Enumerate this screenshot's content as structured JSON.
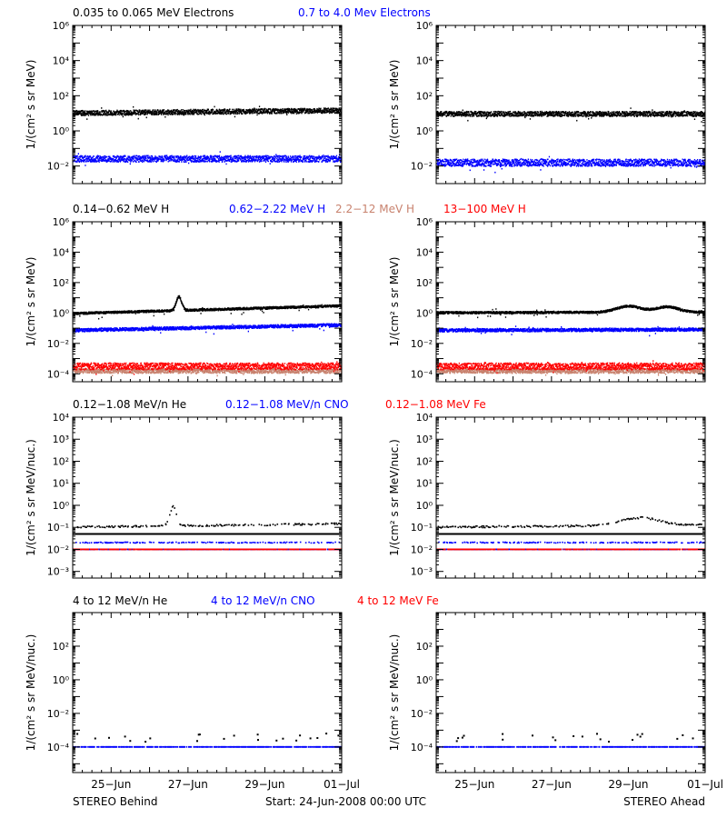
{
  "colors": {
    "black": "#000000",
    "blue": "#0000ff",
    "salmon": "#c8826e",
    "red": "#ff0000"
  },
  "footer": {
    "left": "STEREO Behind",
    "center": "Start: 24-Jun-2008 00:00 UTC",
    "right": "STEREO Ahead"
  },
  "time_axis": {
    "start": "24-Jun-2008 00:00",
    "end": "01-Jul-2008 00:00",
    "tick_labels": [
      "25−Jun",
      "27−Jun",
      "29−Jun",
      "01−Jul"
    ],
    "tick_days": [
      1,
      3,
      5,
      7
    ],
    "minor_ticks_per_day": 4
  },
  "rows": [
    {
      "titles": [
        {
          "text": "0.035 to 0.065 MeV Electrons",
          "color": "black"
        },
        {
          "text": "0.7 to 4.0 Mev Electrons",
          "color": "blue"
        }
      ]
    },
    {
      "titles": [
        {
          "text": "0.14−0.62 MeV H",
          "color": "black"
        },
        {
          "text": "0.62−2.22 MeV H",
          "color": "blue"
        },
        {
          "text": "2.2−12 MeV H",
          "color": "salmon"
        },
        {
          "text": "13−100 MeV H",
          "color": "red"
        }
      ]
    },
    {
      "titles": [
        {
          "text": "0.12−1.08 MeV/n He",
          "color": "black"
        },
        {
          "text": "0.12−1.08 MeV/n CNO",
          "color": "blue"
        },
        {
          "text": "0.12−1.08 MeV Fe",
          "color": "red"
        }
      ]
    },
    {
      "titles": [
        {
          "text": "4 to 12 MeV/n He",
          "color": "black"
        },
        {
          "text": "4 to 12 MeV/n CNO",
          "color": "blue"
        },
        {
          "text": "4 to 12 MeV Fe",
          "color": "red"
        }
      ]
    }
  ],
  "chart_data": [
    {
      "id": "behind-electrons",
      "type": "scatter",
      "y_scale": "log",
      "ylabel": "1/(cm² s sr MeV)",
      "ylim": [
        0.001,
        1000000
      ],
      "y_ticks": [
        {
          "exp": 6,
          "label": "10⁶"
        },
        {
          "exp": 4,
          "label": "10⁴"
        },
        {
          "exp": 2,
          "label": "10²"
        },
        {
          "exp": 0,
          "label": "10⁰"
        },
        {
          "exp": -2,
          "label": "10⁻²"
        }
      ],
      "series": [
        {
          "color": "black",
          "base": 10,
          "trend": 0.15,
          "spread": 0.14,
          "style": "band"
        },
        {
          "color": "blue",
          "base": 0.025,
          "trend": 0,
          "spread": 0.18,
          "style": "band"
        }
      ]
    },
    {
      "id": "ahead-electrons",
      "type": "scatter",
      "y_scale": "log",
      "ylabel": "1/(cm² s sr MeV)",
      "ylim": [
        0.001,
        1000000
      ],
      "y_ticks": [
        {
          "exp": 6,
          "label": "10⁶"
        },
        {
          "exp": 4,
          "label": "10⁴"
        },
        {
          "exp": 2,
          "label": "10²"
        },
        {
          "exp": 0,
          "label": "10⁰"
        },
        {
          "exp": -2,
          "label": "10⁻²"
        }
      ],
      "series": [
        {
          "color": "black",
          "base": 9,
          "trend": 0,
          "spread": 0.14,
          "style": "band"
        },
        {
          "color": "blue",
          "base": 0.015,
          "trend": 0,
          "spread": 0.2,
          "style": "band"
        }
      ]
    },
    {
      "id": "behind-protons",
      "type": "scatter",
      "y_scale": "log",
      "ylabel": "1/(cm² s sr MeV)",
      "ylim": [
        3e-05,
        1000000
      ],
      "y_ticks": [
        {
          "exp": 6,
          "label": "10⁶"
        },
        {
          "exp": 4,
          "label": "10⁴"
        },
        {
          "exp": 2,
          "label": "10²"
        },
        {
          "exp": 0,
          "label": "10⁰"
        },
        {
          "exp": -2,
          "label": "10⁻²"
        },
        {
          "exp": -4,
          "label": "10⁻⁴"
        }
      ],
      "series": [
        {
          "color": "black",
          "base": 0.9,
          "trend": 0.5,
          "spread": 0.07,
          "style": "band",
          "bumps": [
            {
              "day": 2.75,
              "height": 0.9,
              "width": 0.1
            }
          ]
        },
        {
          "color": "blue",
          "base": 0.07,
          "trend": 0.35,
          "spread": 0.1,
          "style": "band"
        },
        {
          "color": "salmon",
          "base": 0.00015,
          "trend": 0,
          "spread": 0.15,
          "style": "band"
        },
        {
          "color": "red",
          "base": 0.0003,
          "trend": 0,
          "spread": 0.22,
          "style": "band"
        }
      ]
    },
    {
      "id": "ahead-protons",
      "type": "scatter",
      "y_scale": "log",
      "ylabel": "1/(cm² s sr MeV)",
      "ylim": [
        3e-05,
        1000000
      ],
      "y_ticks": [
        {
          "exp": 6,
          "label": "10⁶"
        },
        {
          "exp": 4,
          "label": "10⁴"
        },
        {
          "exp": 2,
          "label": "10²"
        },
        {
          "exp": 0,
          "label": "10⁰"
        },
        {
          "exp": -2,
          "label": "10⁻²"
        },
        {
          "exp": -4,
          "label": "10⁻⁴"
        }
      ],
      "series": [
        {
          "color": "black",
          "base": 1.0,
          "trend": 0.05,
          "spread": 0.07,
          "style": "band",
          "bumps": [
            {
              "day": 5.0,
              "height": 0.4,
              "width": 0.45
            },
            {
              "day": 6.0,
              "height": 0.35,
              "width": 0.4
            }
          ]
        },
        {
          "color": "blue",
          "base": 0.07,
          "trend": 0.05,
          "spread": 0.1,
          "style": "band"
        },
        {
          "color": "salmon",
          "base": 0.00015,
          "trend": 0,
          "spread": 0.15,
          "style": "band"
        },
        {
          "color": "red",
          "base": 0.0003,
          "trend": 0,
          "spread": 0.22,
          "style": "band"
        }
      ]
    },
    {
      "id": "behind-ions-low",
      "type": "scatter",
      "y_scale": "log",
      "ylabel": "1/(cm² s sr MeV/nuc.)",
      "ylim": [
        0.0005,
        10000
      ],
      "y_ticks": [
        {
          "exp": 4,
          "label": "10⁴"
        },
        {
          "exp": 3,
          "label": "10³"
        },
        {
          "exp": 2,
          "label": "10²"
        },
        {
          "exp": 1,
          "label": "10¹"
        },
        {
          "exp": 0,
          "label": "10⁰"
        },
        {
          "exp": -1,
          "label": "10⁻¹"
        },
        {
          "exp": -2,
          "label": "10⁻²"
        },
        {
          "exp": -3,
          "label": "10⁻³"
        }
      ],
      "lines": [
        {
          "color": "black",
          "value": 0.05,
          "width": 2
        }
      ],
      "series": [
        {
          "color": "black",
          "base": 0.1,
          "trend": 0.15,
          "spread": 0.04,
          "style": "sparse",
          "bumps": [
            {
              "day": 2.6,
              "height": 0.9,
              "width": 0.12
            }
          ]
        },
        {
          "color": "blue",
          "base": 0.02,
          "trend": 0,
          "spread": 0.02,
          "style": "sparse"
        },
        {
          "color": "blue",
          "base": 0.01,
          "trend": 0,
          "spread": 0.0,
          "style": "dashed"
        },
        {
          "color": "red",
          "base": 0.01,
          "trend": 0,
          "spread": 0.0,
          "style": "dashed"
        }
      ]
    },
    {
      "id": "ahead-ions-low",
      "type": "scatter",
      "y_scale": "log",
      "ylabel": "1/(cm² s sr MeV/nuc.)",
      "ylim": [
        0.0005,
        10000
      ],
      "y_ticks": [
        {
          "exp": 4,
          "label": "10⁴"
        },
        {
          "exp": 3,
          "label": "10³"
        },
        {
          "exp": 2,
          "label": "10²"
        },
        {
          "exp": 1,
          "label": "10¹"
        },
        {
          "exp": 0,
          "label": "10⁰"
        },
        {
          "exp": -1,
          "label": "10⁻¹"
        },
        {
          "exp": -2,
          "label": "10⁻²"
        },
        {
          "exp": -3,
          "label": "10⁻³"
        }
      ],
      "lines": [
        {
          "color": "black",
          "value": 0.05,
          "width": 2
        }
      ],
      "series": [
        {
          "color": "black",
          "base": 0.1,
          "trend": 0.1,
          "spread": 0.04,
          "style": "sparse",
          "bumps": [
            {
              "day": 5.3,
              "height": 0.35,
              "width": 0.7
            }
          ]
        },
        {
          "color": "blue",
          "base": 0.02,
          "trend": 0,
          "spread": 0.02,
          "style": "sparse"
        },
        {
          "color": "blue",
          "base": 0.01,
          "trend": 0,
          "spread": 0.0,
          "style": "dashed"
        },
        {
          "color": "red",
          "base": 0.01,
          "trend": 0,
          "spread": 0.0,
          "style": "dashed"
        }
      ]
    },
    {
      "id": "behind-ions-high",
      "type": "scatter",
      "y_scale": "log",
      "ylabel": "1/(cm² s sr MeV/nuc.)",
      "ylim": [
        3e-06,
        10000
      ],
      "y_ticks": [
        {
          "exp": 2,
          "label": "10²"
        },
        {
          "exp": 0,
          "label": "10⁰"
        },
        {
          "exp": -2,
          "label": "10⁻²"
        },
        {
          "exp": -4,
          "label": "10⁻⁴"
        }
      ],
      "series": [
        {
          "color": "blue",
          "base": 0.0001,
          "trend": 0,
          "spread": 0.0,
          "style": "dashed"
        },
        {
          "color": "black",
          "base": 0.0002,
          "trend": 0,
          "spread": 0.1,
          "style": "rare"
        }
      ]
    },
    {
      "id": "ahead-ions-high",
      "type": "scatter",
      "y_scale": "log",
      "ylabel": "1/(cm² s sr MeV/nuc.)",
      "ylim": [
        3e-06,
        10000
      ],
      "y_ticks": [
        {
          "exp": 2,
          "label": "10²"
        },
        {
          "exp": 0,
          "label": "10⁰"
        },
        {
          "exp": -2,
          "label": "10⁻²"
        },
        {
          "exp": -4,
          "label": "10⁻⁴"
        }
      ],
      "series": [
        {
          "color": "blue",
          "base": 0.0001,
          "trend": 0,
          "spread": 0.0,
          "style": "dashed"
        },
        {
          "color": "black",
          "base": 0.0002,
          "trend": 0,
          "spread": 0.1,
          "style": "rare"
        }
      ]
    }
  ]
}
